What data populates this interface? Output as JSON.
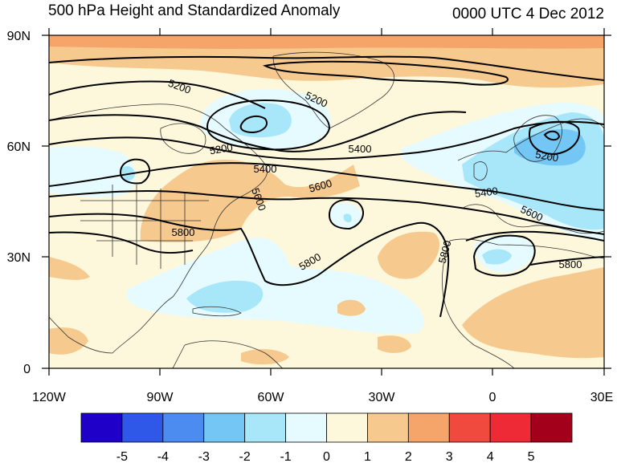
{
  "title": "500 hPa Height and Standardized Anomaly",
  "valid_time": "0000 UTC 4 Dec 2012",
  "lat_ticks": [
    "90N",
    "60N",
    "30N",
    "0"
  ],
  "lon_ticks": [
    "120W",
    "90W",
    "60W",
    "30W",
    "0",
    "30E"
  ],
  "contour_labels": [
    "5200",
    "5200",
    "5200",
    "5200",
    "5400",
    "5400",
    "5400",
    "5600",
    "5600",
    "5600",
    "5800",
    "5800",
    "5800",
    "5800"
  ],
  "colorbar": {
    "labels": [
      "-5",
      "-4",
      "-3",
      "-2",
      "-1",
      "0",
      "1",
      "2",
      "3",
      "4",
      "5"
    ],
    "colors": [
      "#1f00c8",
      "#2f58e8",
      "#4c8cf0",
      "#74c6f5",
      "#a8e6fa",
      "#e6fbff",
      "#fdf8dc",
      "#f6c98f",
      "#f5a46a",
      "#f04a3f",
      "#ee2a36",
      "#a3001c"
    ]
  },
  "colors": {
    "pos_light": "#fdf8dc",
    "pos_mid": "#f6c98f",
    "pos_strong": "#f5a46a",
    "neg_light": "#e6fbff",
    "neg_mid": "#a8e6fa",
    "neg_strong": "#74c6f5"
  }
}
